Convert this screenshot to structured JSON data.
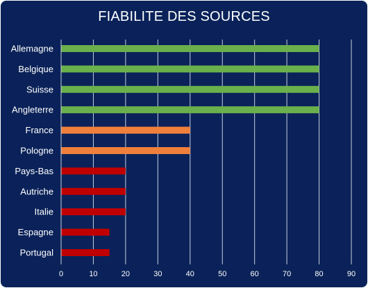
{
  "chart_data": {
    "type": "bar",
    "orientation": "horizontal",
    "title": "FIABILITE DES SOURCES",
    "xlabel": "",
    "ylabel": "",
    "xlim": [
      0,
      90
    ],
    "x_ticks": [
      0,
      10,
      20,
      30,
      40,
      50,
      60,
      70,
      80,
      90
    ],
    "grid": true,
    "categories": [
      "Allemagne",
      "Belgique",
      "Suisse",
      "Angleterre",
      "France",
      "Pologne",
      "Pays-Bas",
      "Autriche",
      "Italie",
      "Espagne",
      "Portugal"
    ],
    "values": [
      80,
      80,
      80,
      80,
      40,
      40,
      20,
      20,
      20,
      15,
      15
    ],
    "bar_colors": [
      "#6ab04c",
      "#6ab04c",
      "#6ab04c",
      "#6ab04c",
      "#f07f3c",
      "#f07f3c",
      "#c00000",
      "#c00000",
      "#c00000",
      "#c00000",
      "#c00000"
    ]
  },
  "colors": {
    "background": "#0a2259",
    "text": "#ffffff",
    "gridline": "#c8d0e0"
  }
}
